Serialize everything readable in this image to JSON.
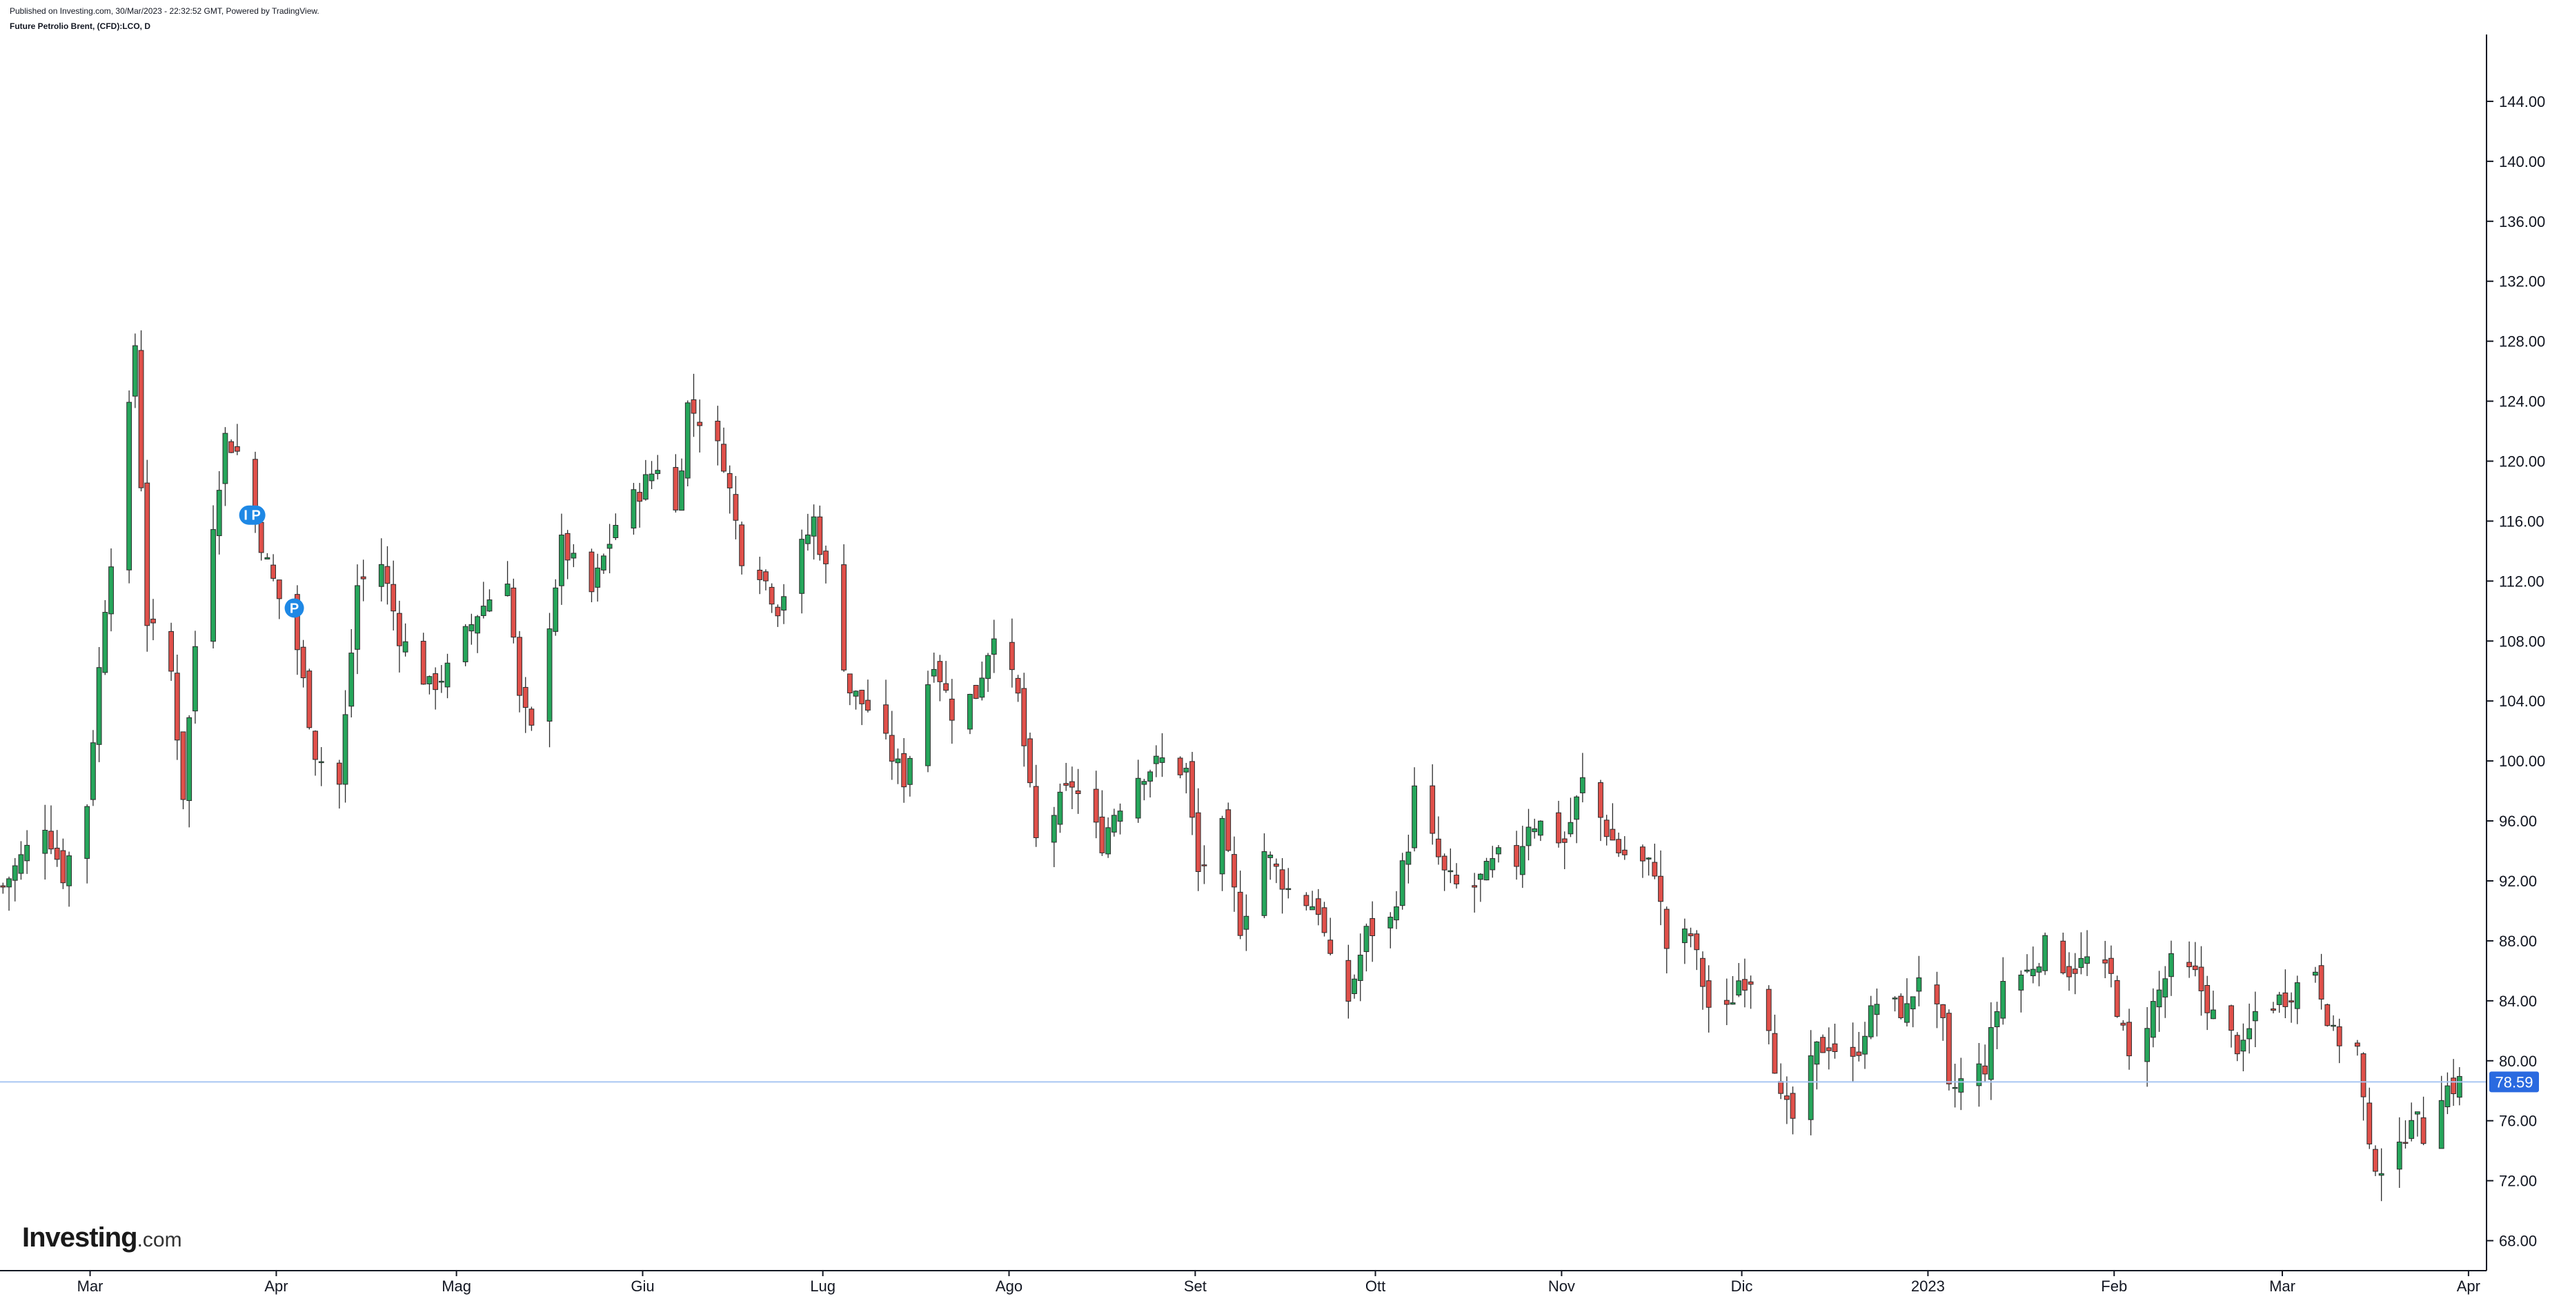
{
  "header": {
    "published": "Published on Investing.com, 30/Mar/2023 - 22:32:52 GMT, Powered by TradingView.",
    "symbol": "Future Petrolio Brent, (CFD):LCO, D"
  },
  "logo": {
    "main": "Investing",
    "suffix": ".com"
  },
  "colors": {
    "up": "#26a65b",
    "down": "#e0504a",
    "wick": "#2b2b2b",
    "price_line": "#a9c6f2",
    "price_badge": "#2a6ae0",
    "event_badge": "#1e88e5",
    "axis": "#131722"
  },
  "chart_data": {
    "type": "candlestick",
    "interval": "D",
    "symbol": "Future Petrolio Brent, (CFD):LCO",
    "x_range": [
      "2022-02-14",
      "2023-04-04"
    ],
    "ylim": [
      66,
      148
    ],
    "y_ticks": [
      "68.00",
      "72.00",
      "76.00",
      "80.00",
      "84.00",
      "88.00",
      "92.00",
      "96.00",
      "100.00",
      "104.00",
      "108.00",
      "112.00",
      "116.00",
      "120.00",
      "124.00",
      "128.00",
      "132.00",
      "136.00",
      "140.00",
      "144.00"
    ],
    "x_ticks": [
      {
        "date": "2022-03-01",
        "label": "Mar"
      },
      {
        "date": "2022-04-01",
        "label": "Apr"
      },
      {
        "date": "2022-05-01",
        "label": "Mag"
      },
      {
        "date": "2022-06-01",
        "label": "Giu"
      },
      {
        "date": "2022-07-01",
        "label": "Lug"
      },
      {
        "date": "2022-08-01",
        "label": "Ago"
      },
      {
        "date": "2022-09-01",
        "label": "Set"
      },
      {
        "date": "2022-10-01",
        "label": "Ott"
      },
      {
        "date": "2022-11-01",
        "label": "Nov"
      },
      {
        "date": "2022-12-01",
        "label": "Dic"
      },
      {
        "date": "2023-01-01",
        "label": "2023"
      },
      {
        "date": "2023-02-01",
        "label": "Feb"
      },
      {
        "date": "2023-03-01",
        "label": "Mar"
      },
      {
        "date": "2023-04-01",
        "label": "Apr"
      }
    ],
    "last_price": "78.59",
    "last_price_value": 78.59,
    "events": [
      {
        "date": "2022-03-28",
        "label": "I P",
        "price": 116.4
      },
      {
        "date": "2022-04-04",
        "label": "P",
        "price": 110.2
      }
    ],
    "anchors": [
      [
        "2022-02-14",
        91.6
      ],
      [
        "2022-02-17",
        93.5
      ],
      [
        "2022-02-21",
        95.9
      ],
      [
        "2022-02-24",
        92.4
      ],
      [
        "2022-02-28",
        97.2
      ],
      [
        "2022-03-03",
        110.5
      ],
      [
        "2022-03-07",
        123.2
      ],
      [
        "2022-03-08",
        127.8
      ],
      [
        "2022-03-10",
        109.4
      ],
      [
        "2022-03-14",
        105.9
      ],
      [
        "2022-03-16",
        97.8
      ],
      [
        "2022-03-18",
        107.7
      ],
      [
        "2022-03-23",
        121.6
      ],
      [
        "2022-03-25",
        120.6
      ],
      [
        "2022-03-30",
        113.1
      ],
      [
        "2022-04-04",
        107.5
      ],
      [
        "2022-04-07",
        100.6
      ],
      [
        "2022-04-11",
        98.4
      ],
      [
        "2022-04-14",
        111.7
      ],
      [
        "2022-04-18",
        113.2
      ],
      [
        "2022-04-21",
        108.4
      ],
      [
        "2022-04-26",
        104.9
      ],
      [
        "2022-04-29",
        106.0
      ],
      [
        "2022-05-04",
        109.9
      ],
      [
        "2022-05-09",
        112.4
      ],
      [
        "2022-05-11",
        104.0
      ],
      [
        "2022-05-13",
        101.9
      ],
      [
        "2022-05-18",
        114.4
      ],
      [
        "2022-05-23",
        111.2
      ],
      [
        "2022-05-27",
        115.8
      ],
      [
        "2022-06-01",
        118.6
      ],
      [
        "2022-06-03",
        119.8
      ],
      [
        "2022-06-06",
        116.6
      ],
      [
        "2022-06-08",
        123.7
      ],
      [
        "2022-06-10",
        122.9
      ],
      [
        "2022-06-14",
        120.1
      ],
      [
        "2022-06-17",
        113.8
      ],
      [
        "2022-06-20",
        112.8
      ],
      [
        "2022-06-23",
        110.3
      ],
      [
        "2022-06-29",
        116.1
      ],
      [
        "2022-07-01",
        112.7
      ],
      [
        "2022-07-05",
        104.7
      ],
      [
        "2022-07-08",
        103.5
      ],
      [
        "2022-07-12",
        100.3
      ],
      [
        "2022-07-14",
        98.8
      ],
      [
        "2022-07-19",
        106.9
      ],
      [
        "2022-07-22",
        103.3
      ],
      [
        "2022-07-26",
        104.5
      ],
      [
        "2022-07-29",
        108.9
      ],
      [
        "2022-08-02",
        104.2
      ],
      [
        "2022-08-05",
        94.6
      ],
      [
        "2022-08-11",
        98.5
      ],
      [
        "2022-08-16",
        94.6
      ],
      [
        "2022-08-18",
        96.6
      ],
      [
        "2022-08-22",
        99.1
      ],
      [
        "2022-08-26",
        100.0
      ],
      [
        "2022-08-30",
        99.3
      ],
      [
        "2022-09-01",
        92.5
      ],
      [
        "2022-09-05",
        95.4
      ],
      [
        "2022-09-08",
        89.0
      ],
      [
        "2022-09-12",
        94.0
      ],
      [
        "2022-09-16",
        91.4
      ],
      [
        "2022-09-21",
        90.2
      ],
      [
        "2022-09-23",
        86.4
      ],
      [
        "2022-09-26",
        84.1
      ],
      [
        "2022-09-29",
        88.5
      ],
      [
        "2022-10-03",
        89.3
      ],
      [
        "2022-10-06",
        94.5
      ],
      [
        "2022-10-07",
        97.9
      ],
      [
        "2022-10-12",
        92.4
      ],
      [
        "2022-10-14",
        91.6
      ],
      [
        "2022-10-17",
        91.6
      ],
      [
        "2022-10-21",
        93.5
      ],
      [
        "2022-10-24",
        93.3
      ],
      [
        "2022-10-26",
        96.0
      ],
      [
        "2022-10-28",
        95.8
      ],
      [
        "2022-11-01",
        94.6
      ],
      [
        "2022-11-04",
        98.6
      ],
      [
        "2022-11-08",
        95.4
      ],
      [
        "2022-11-10",
        94.0
      ],
      [
        "2022-11-14",
        93.1
      ],
      [
        "2022-11-16",
        92.9
      ],
      [
        "2022-11-18",
        87.6
      ],
      [
        "2022-11-22",
        88.4
      ],
      [
        "2022-11-25",
        83.6
      ],
      [
        "2022-11-28",
        83.2
      ],
      [
        "2022-11-30",
        85.4
      ],
      [
        "2022-12-02",
        85.6
      ],
      [
        "2022-12-05",
        82.7
      ],
      [
        "2022-12-07",
        77.2
      ],
      [
        "2022-12-09",
        76.1
      ],
      [
        "2022-12-13",
        80.7
      ],
      [
        "2022-12-15",
        81.2
      ],
      [
        "2022-12-19",
        79.8
      ],
      [
        "2022-12-21",
        82.2
      ],
      [
        "2022-12-23",
        83.9
      ],
      [
        "2022-12-28",
        83.3
      ],
      [
        "2022-12-30",
        85.9
      ],
      [
        "2023-01-03",
        82.1
      ],
      [
        "2023-01-04",
        77.8
      ],
      [
        "2023-01-06",
        78.6
      ],
      [
        "2023-01-10",
        79.7
      ],
      [
        "2023-01-13",
        85.3
      ],
      [
        "2023-01-17",
        85.9
      ],
      [
        "2023-01-20",
        87.6
      ],
      [
        "2023-01-24",
        86.1
      ],
      [
        "2023-01-27",
        86.7
      ],
      [
        "2023-01-31",
        85.5
      ],
      [
        "2023-02-03",
        79.9
      ],
      [
        "2023-02-07",
        83.7
      ],
      [
        "2023-02-10",
        86.4
      ],
      [
        "2023-02-14",
        85.6
      ],
      [
        "2023-02-17",
        83.0
      ],
      [
        "2023-02-22",
        80.6
      ],
      [
        "2023-02-24",
        83.2
      ],
      [
        "2023-03-01",
        84.3
      ],
      [
        "2023-03-06",
        86.2
      ],
      [
        "2023-03-09",
        81.6
      ],
      [
        "2023-03-13",
        80.8
      ],
      [
        "2023-03-15",
        73.7
      ],
      [
        "2023-03-17",
        72.97
      ],
      [
        "2023-03-20",
        73.8
      ],
      [
        "2023-03-22",
        76.7
      ],
      [
        "2023-03-24",
        74.99
      ],
      [
        "2023-03-27",
        78.1
      ],
      [
        "2023-03-29",
        78.3
      ],
      [
        "2023-03-30",
        78.59
      ]
    ]
  }
}
